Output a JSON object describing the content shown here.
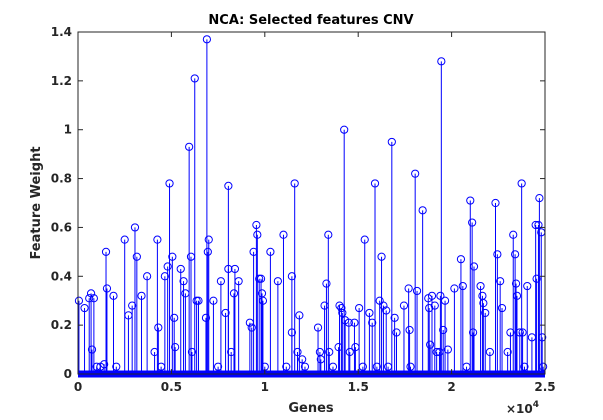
{
  "chart_data": {
    "type": "stem",
    "title": "NCA: Selected features CNV",
    "xlabel": "Genes",
    "ylabel": "Feature Weight",
    "x_exponent_label": "×10",
    "x_exponent_power": "4",
    "xlim": [
      0,
      25000
    ],
    "ylim": [
      0,
      1.4
    ],
    "x_ticks": [
      0,
      5000,
      10000,
      15000,
      20000,
      25000
    ],
    "x_tick_labels": [
      "0",
      "0.5",
      "1",
      "1.5",
      "2",
      "2.5"
    ],
    "y_ticks": [
      0,
      0.2,
      0.4,
      0.6,
      0.8,
      1.0,
      1.2,
      1.4
    ],
    "y_tick_labels": [
      "0",
      "0.2",
      "0.4",
      "0.6",
      "0.8",
      "1",
      "1.2",
      "1.4"
    ],
    "grid": false,
    "box": true,
    "color": "#0000ff",
    "baseline_gene_count": 25000,
    "points": [
      [
        50,
        0.3
      ],
      [
        350,
        0.27
      ],
      [
        600,
        0.31
      ],
      [
        700,
        0.33
      ],
      [
        750,
        0.1
      ],
      [
        850,
        0.31
      ],
      [
        1000,
        0.03
      ],
      [
        1200,
        0.03
      ],
      [
        1400,
        0.04
      ],
      [
        1500,
        0.5
      ],
      [
        1550,
        0.35
      ],
      [
        1900,
        0.32
      ],
      [
        2050,
        0.03
      ],
      [
        2500,
        0.55
      ],
      [
        2700,
        0.24
      ],
      [
        2900,
        0.28
      ],
      [
        3050,
        0.6
      ],
      [
        3150,
        0.48
      ],
      [
        3400,
        0.32
      ],
      [
        3700,
        0.4
      ],
      [
        4100,
        0.09
      ],
      [
        4250,
        0.55
      ],
      [
        4300,
        0.19
      ],
      [
        4450,
        0.03
      ],
      [
        4650,
        0.4
      ],
      [
        4800,
        0.44
      ],
      [
        4900,
        0.78
      ],
      [
        5050,
        0.48
      ],
      [
        5150,
        0.23
      ],
      [
        5200,
        0.11
      ],
      [
        5500,
        0.43
      ],
      [
        5650,
        0.38
      ],
      [
        5750,
        0.33
      ],
      [
        5950,
        0.93
      ],
      [
        6050,
        0.48
      ],
      [
        6100,
        0.09
      ],
      [
        6250,
        1.21
      ],
      [
        6350,
        0.3
      ],
      [
        6450,
        0.3
      ],
      [
        6900,
        1.37
      ],
      [
        6850,
        0.23
      ],
      [
        7000,
        0.55
      ],
      [
        6950,
        0.5
      ],
      [
        7250,
        0.3
      ],
      [
        7500,
        0.03
      ],
      [
        7650,
        0.38
      ],
      [
        7900,
        0.25
      ],
      [
        8050,
        0.77
      ],
      [
        8050,
        0.43
      ],
      [
        8200,
        0.09
      ],
      [
        8400,
        0.43
      ],
      [
        8350,
        0.33
      ],
      [
        8600,
        0.38
      ],
      [
        9200,
        0.21
      ],
      [
        9300,
        0.19
      ],
      [
        9400,
        0.5
      ],
      [
        9550,
        0.61
      ],
      [
        9600,
        0.57
      ],
      [
        9700,
        0.39
      ],
      [
        9800,
        0.39
      ],
      [
        9850,
        0.33
      ],
      [
        9900,
        0.3
      ],
      [
        10000,
        0.03
      ],
      [
        10300,
        0.5
      ],
      [
        10700,
        0.38
      ],
      [
        11000,
        0.57
      ],
      [
        11150,
        0.03
      ],
      [
        11450,
        0.4
      ],
      [
        11450,
        0.17
      ],
      [
        11600,
        0.78
      ],
      [
        11750,
        0.09
      ],
      [
        11850,
        0.24
      ],
      [
        12000,
        0.06
      ],
      [
        12150,
        0.03
      ],
      [
        12850,
        0.19
      ],
      [
        12950,
        0.09
      ],
      [
        13000,
        0.06
      ],
      [
        13200,
        0.28
      ],
      [
        13300,
        0.37
      ],
      [
        13400,
        0.57
      ],
      [
        13450,
        0.09
      ],
      [
        13650,
        0.03
      ],
      [
        13950,
        0.11
      ],
      [
        14000,
        0.28
      ],
      [
        14100,
        0.27
      ],
      [
        14150,
        0.25
      ],
      [
        14250,
        1.0
      ],
      [
        14300,
        0.22
      ],
      [
        14500,
        0.21
      ],
      [
        14550,
        0.09
      ],
      [
        14800,
        0.21
      ],
      [
        14850,
        0.11
      ],
      [
        15050,
        0.27
      ],
      [
        15250,
        0.03
      ],
      [
        15350,
        0.55
      ],
      [
        15600,
        0.25
      ],
      [
        15750,
        0.21
      ],
      [
        15900,
        0.78
      ],
      [
        16000,
        0.03
      ],
      [
        16150,
        0.3
      ],
      [
        16250,
        0.48
      ],
      [
        16350,
        0.28
      ],
      [
        16500,
        0.26
      ],
      [
        16600,
        0.03
      ],
      [
        16800,
        0.95
      ],
      [
        16950,
        0.23
      ],
      [
        17050,
        0.17
      ],
      [
        17450,
        0.28
      ],
      [
        17700,
        0.35
      ],
      [
        17750,
        0.18
      ],
      [
        17800,
        0.03
      ],
      [
        18050,
        0.82
      ],
      [
        18150,
        0.34
      ],
      [
        18450,
        0.67
      ],
      [
        18750,
        0.31
      ],
      [
        18800,
        0.27
      ],
      [
        18850,
        0.12
      ],
      [
        18950,
        0.32
      ],
      [
        19100,
        0.28
      ],
      [
        19200,
        0.09
      ],
      [
        19350,
        0.09
      ],
      [
        19400,
        0.32
      ],
      [
        19450,
        1.28
      ],
      [
        19550,
        0.18
      ],
      [
        19650,
        0.3
      ],
      [
        19800,
        0.1
      ],
      [
        20150,
        0.35
      ],
      [
        20500,
        0.47
      ],
      [
        20600,
        0.36
      ],
      [
        20800,
        0.03
      ],
      [
        21000,
        0.71
      ],
      [
        21100,
        0.62
      ],
      [
        21150,
        0.17
      ],
      [
        21200,
        0.44
      ],
      [
        21550,
        0.36
      ],
      [
        21650,
        0.32
      ],
      [
        21700,
        0.29
      ],
      [
        21800,
        0.25
      ],
      [
        22050,
        0.09
      ],
      [
        22350,
        0.7
      ],
      [
        22450,
        0.49
      ],
      [
        22600,
        0.38
      ],
      [
        22700,
        0.27
      ],
      [
        23000,
        0.09
      ],
      [
        23150,
        0.17
      ],
      [
        23300,
        0.57
      ],
      [
        23400,
        0.49
      ],
      [
        23450,
        0.37
      ],
      [
        23500,
        0.32
      ],
      [
        23650,
        0.17
      ],
      [
        23750,
        0.78
      ],
      [
        23800,
        0.17
      ],
      [
        23900,
        0.03
      ],
      [
        24050,
        0.36
      ],
      [
        24300,
        0.15
      ],
      [
        24500,
        0.61
      ],
      [
        24550,
        0.39
      ],
      [
        24650,
        0.61
      ],
      [
        24700,
        0.72
      ],
      [
        24800,
        0.58
      ],
      [
        24850,
        0.15
      ],
      [
        24900,
        0.03
      ]
    ]
  }
}
